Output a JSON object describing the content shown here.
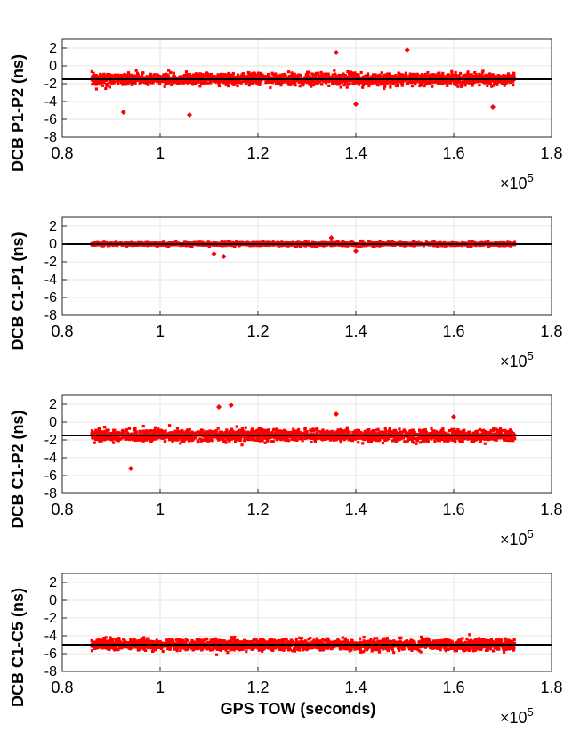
{
  "chart_data": [
    {
      "type": "scatter",
      "ylabel": "DCB P1-P2 (ns)",
      "xlabel": "",
      "x_multiplier_base": "×10",
      "x_multiplier_exp": "5",
      "xlim": [
        0.8,
        1.8
      ],
      "ylim": [
        -8,
        3
      ],
      "xticks": [
        "0.8",
        "1",
        "1.2",
        "1.4",
        "1.6",
        "1.8"
      ],
      "yticks": [
        "2",
        "0",
        "-2",
        "-4",
        "-6",
        "-8"
      ],
      "grid": true,
      "marker_color": "#ff0000",
      "data_x_range": [
        0.86,
        1.725
      ],
      "center": -1.5,
      "spread": 0.75,
      "mean_line": -1.5,
      "outliers": [
        [
          0.925,
          -5.2
        ],
        [
          1.06,
          -5.5
        ],
        [
          1.36,
          1.5
        ],
        [
          1.505,
          1.8
        ],
        [
          1.4,
          -4.3
        ],
        [
          1.68,
          -4.6
        ]
      ]
    },
    {
      "type": "scatter",
      "ylabel": "DCB C1-P1 (ns)",
      "xlabel": "",
      "x_multiplier_base": "×10",
      "x_multiplier_exp": "5",
      "xlim": [
        0.8,
        1.8
      ],
      "ylim": [
        -8,
        3
      ],
      "xticks": [
        "0.8",
        "1",
        "1.2",
        "1.4",
        "1.6",
        "1.8"
      ],
      "yticks": [
        "2",
        "0",
        "-2",
        "-4",
        "-6",
        "-8"
      ],
      "grid": true,
      "marker_color": "#ff0000",
      "data_x_range": [
        0.86,
        1.725
      ],
      "center": 0.0,
      "spread": 0.22,
      "mean_line": 0.0,
      "outliers": [
        [
          1.11,
          -1.1
        ],
        [
          1.13,
          -1.4
        ],
        [
          1.4,
          -0.8
        ],
        [
          1.35,
          0.7
        ]
      ]
    },
    {
      "type": "scatter",
      "ylabel": "DCB C1-P2 (ns)",
      "xlabel": "",
      "x_multiplier_base": "×10",
      "x_multiplier_exp": "5",
      "xlim": [
        0.8,
        1.8
      ],
      "ylim": [
        -8,
        3
      ],
      "xticks": [
        "0.8",
        "1",
        "1.2",
        "1.4",
        "1.6",
        "1.8"
      ],
      "yticks": [
        "2",
        "0",
        "-2",
        "-4",
        "-6",
        "-8"
      ],
      "grid": true,
      "marker_color": "#ff0000",
      "data_x_range": [
        0.86,
        1.725
      ],
      "center": -1.5,
      "spread": 0.75,
      "mean_line": -1.5,
      "outliers": [
        [
          0.94,
          -5.2
        ],
        [
          1.12,
          1.7
        ],
        [
          1.145,
          1.9
        ],
        [
          1.36,
          0.9
        ],
        [
          1.6,
          0.6
        ]
      ]
    },
    {
      "type": "scatter",
      "ylabel": "DCB C1-C5 (ns)",
      "xlabel": "GPS TOW (seconds)",
      "x_multiplier_base": "×10",
      "x_multiplier_exp": "5",
      "xlim": [
        0.8,
        1.8
      ],
      "ylim": [
        -8,
        3
      ],
      "xticks": [
        "0.8",
        "1",
        "1.2",
        "1.4",
        "1.6",
        "1.8"
      ],
      "yticks": [
        "2",
        "0",
        "-2",
        "-4",
        "-6",
        "-8"
      ],
      "grid": true,
      "marker_color": "#ff0000",
      "data_x_range": [
        0.86,
        1.725
      ],
      "center": -5.0,
      "spread": 0.7,
      "mean_line": -5.0,
      "outliers": []
    }
  ]
}
